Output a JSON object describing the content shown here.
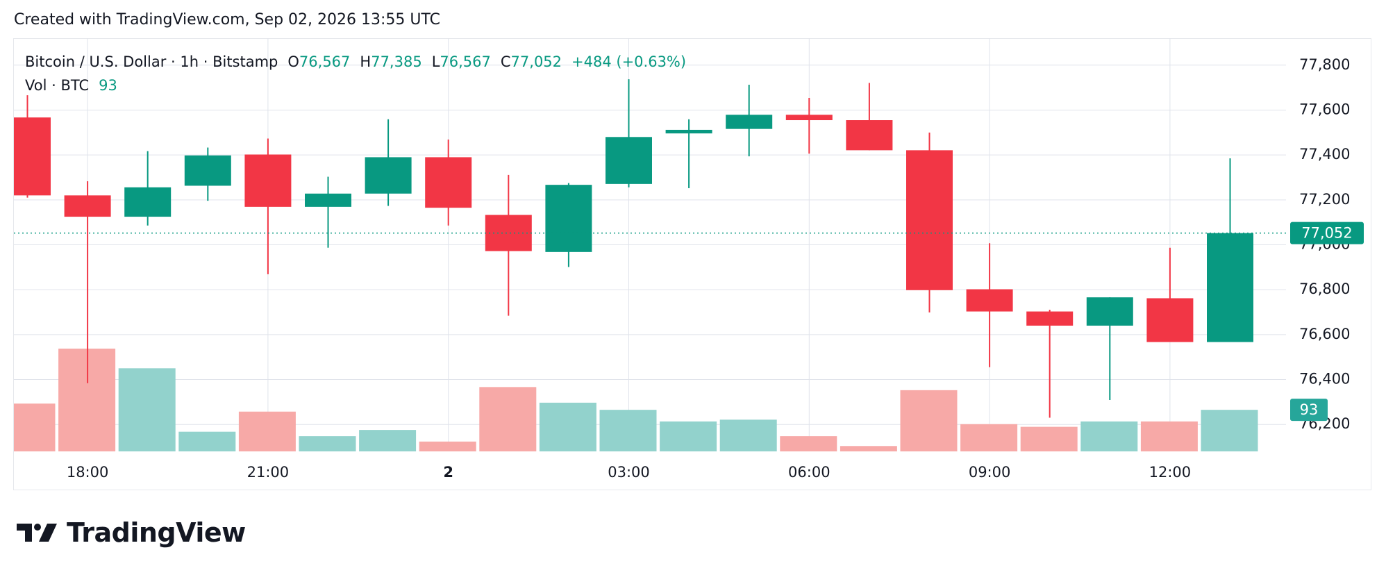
{
  "header": {
    "caption": "Created with TradingView.com, Sep 02, 2026 13:55 UTC"
  },
  "chart_data": {
    "type": "candlestick",
    "legend": {
      "symbol": "Bitcoin / U.S. Dollar · 1h · Bitstamp",
      "ohlc": [
        {
          "key": "O",
          "value": "76,567"
        },
        {
          "key": "H",
          "value": "77,385"
        },
        {
          "key": "L",
          "value": "76,567"
        },
        {
          "key": "C",
          "value": "77,052"
        }
      ],
      "change": "+484 (+0.63%)",
      "volume_name": "Vol · BTC"
    },
    "categories": [
      null,
      "18:00",
      null,
      null,
      "21:00",
      null,
      null,
      "2",
      null,
      null,
      "03:00",
      null,
      null,
      "06:00",
      null,
      null,
      "09:00",
      null,
      null,
      "12:00",
      null
    ],
    "open": [
      77567,
      77220,
      77125,
      77263,
      77402,
      77169,
      77228,
      77390,
      77133,
      76968,
      77271,
      77496,
      77516,
      77579,
      77555,
      77421,
      76802,
      76703,
      76640,
      76762,
      76567
    ],
    "high": [
      77666,
      77283,
      77417,
      77433,
      77473,
      77303,
      77559,
      77469,
      77311,
      77275,
      77737,
      77559,
      77713,
      77654,
      77721,
      77500,
      77007,
      76711,
      76766,
      76987,
      77385
    ],
    "low": [
      77210,
      76384,
      77086,
      77196,
      76869,
      76987,
      77173,
      77086,
      76684,
      76901,
      77256,
      77252,
      77394,
      77406,
      77421,
      76699,
      76455,
      76230,
      76309,
      76567,
      76567
    ],
    "close": [
      77220,
      77125,
      77256,
      77398,
      77169,
      77228,
      77390,
      77165,
      76972,
      77267,
      77480,
      77512,
      77579,
      77555,
      77421,
      76798,
      76703,
      76640,
      76766,
      76567,
      77052
    ],
    "volume": [
      107,
      230,
      186,
      44,
      89,
      34,
      48,
      22,
      144,
      109,
      93,
      67,
      71,
      34,
      12,
      137,
      61,
      55,
      67,
      67,
      93
    ],
    "ylim": [
      76080,
      77920
    ],
    "yticks": [
      {
        "value": 76200,
        "label": "76,200"
      },
      {
        "value": 76400,
        "label": "76,400"
      },
      {
        "value": 76600,
        "label": "76,600"
      },
      {
        "value": 76800,
        "label": "76,800"
      },
      {
        "value": 77000,
        "label": "77,000"
      },
      {
        "value": 77200,
        "label": "77,200"
      },
      {
        "value": 77400,
        "label": "77,400"
      },
      {
        "value": 77600,
        "label": "77,600"
      },
      {
        "value": 77800,
        "label": "77,800"
      }
    ],
    "grid": true,
    "up_color": "#089981",
    "down_color": "#f23645",
    "volume_up_color": "#92d2cc",
    "volume_down_color": "#f7a9a7"
  },
  "footer": {
    "logo": "TradingView"
  }
}
